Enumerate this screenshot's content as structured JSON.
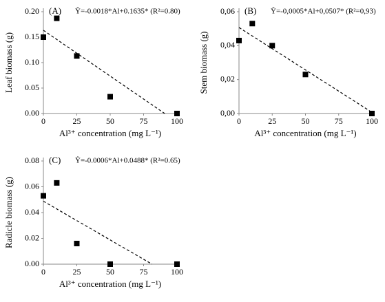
{
  "chart_data": [
    {
      "type": "scatter",
      "panel_label": "(A)",
      "annotation": "Ŷ=-0.0018*Al+0.1635* (R²=0.80)",
      "x_label": "Al³⁺ concentration (mg L⁻¹)",
      "y_label": "Leaf biomass (g)",
      "x": [
        0,
        10,
        25,
        50,
        100
      ],
      "values": [
        0.15,
        0.187,
        0.113,
        0.033,
        0.0
      ],
      "color": "#000000",
      "trend": {
        "x": [
          0,
          90.8
        ],
        "y": [
          0.1635,
          0
        ]
      },
      "xlim": [
        0,
        100
      ],
      "xticks": [
        0,
        25,
        50,
        75,
        100
      ],
      "ylim": [
        0,
        0.2
      ],
      "yticks": [
        {
          "value": 0,
          "label": "0.00"
        },
        {
          "value": 0.05,
          "label": "0.05"
        },
        {
          "value": 0.1,
          "label": "0.10"
        },
        {
          "value": 0.15,
          "label": "0.15"
        },
        {
          "value": 0.2,
          "label": "0.20"
        }
      ]
    },
    {
      "type": "scatter",
      "panel_label": "(B)",
      "annotation": "Ŷ=-0,0005*Al+0,0507* (R²=0,93)",
      "x_label": "Al³⁺ concentration (mg L⁻¹)",
      "y_label": "Stem biomass (g)",
      "x": [
        0,
        10,
        25,
        50,
        100
      ],
      "values": [
        0.043,
        0.053,
        0.04,
        0.023,
        0.0
      ],
      "color": "#000000",
      "trend": {
        "x": [
          0,
          100
        ],
        "y": [
          0.0507,
          0.0007
        ]
      },
      "xlim": [
        0,
        100
      ],
      "xticks": [
        0,
        25,
        50,
        75,
        100
      ],
      "ylim": [
        0,
        0.06
      ],
      "yticks": [
        {
          "value": 0,
          "label": "0,00"
        },
        {
          "value": 0.02,
          "label": "0,02"
        },
        {
          "value": 0.04,
          "label": "0,04"
        },
        {
          "value": 0.06,
          "label": "0,06"
        }
      ]
    },
    {
      "type": "scatter",
      "panel_label": "(C)",
      "annotation": "Ŷ=-0.0006*Al+0.0488* (R²=0.65)",
      "x_label": "Al³⁺ concentration (mg L⁻¹)",
      "y_label": "Radicle biomass (g)",
      "x": [
        0,
        10,
        25,
        50,
        100
      ],
      "values": [
        0.053,
        0.063,
        0.016,
        0.0,
        0.0
      ],
      "color": "#000000",
      "trend": {
        "x": [
          0,
          81.3
        ],
        "y": [
          0.0488,
          0
        ]
      },
      "xlim": [
        0,
        100
      ],
      "xticks": [
        0,
        25,
        50,
        75,
        100
      ],
      "ylim": [
        0,
        0.08
      ],
      "yticks": [
        {
          "value": 0,
          "label": "0.00"
        },
        {
          "value": 0.02,
          "label": "0.02"
        },
        {
          "value": 0.04,
          "label": "0.04"
        },
        {
          "value": 0.06,
          "label": "0.06"
        },
        {
          "value": 0.08,
          "label": "0.08"
        }
      ]
    }
  ]
}
